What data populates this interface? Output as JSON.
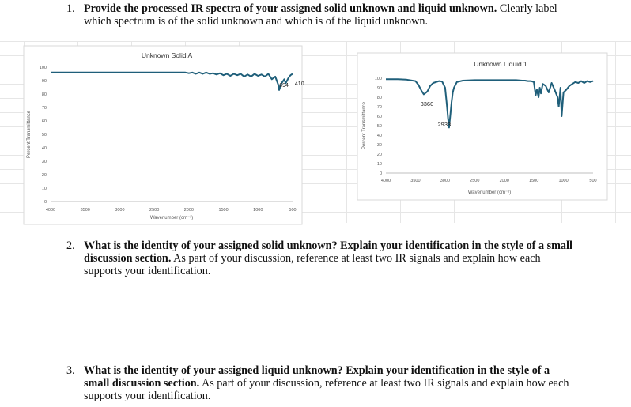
{
  "questions": [
    {
      "number": "1.",
      "bold": "Provide the processed IR spectra of your assigned solid unknown and liquid unknown.",
      "rest": " Clearly label which spectrum is of the solid unknown and which is of the liquid unknown."
    },
    {
      "number": "2.",
      "bold": "What is the identity of your assigned solid unknown? Explain your identification in the style of a small discussion section.",
      "rest": " As part of your discussion, reference at least two IR signals and explain how each supports your identification."
    },
    {
      "number": "3.",
      "bold": "What is the identity of your assigned liquid unknown? Explain your identification in the style of a small discussion section.",
      "rest": " As part of your discussion, reference at least two IR signals and explain how each supports your identification."
    }
  ],
  "chart_data": [
    {
      "type": "line",
      "title": "Unknown Solid A",
      "xlabel": "Wavenumber (cm⁻¹)",
      "ylabel": "Percent Transmittance",
      "xlim": [
        4000,
        500
      ],
      "ylim": [
        0,
        100
      ],
      "xticks": [
        "4000",
        "3500",
        "3000",
        "2500",
        "2000",
        "1500",
        "1000",
        "500"
      ],
      "yticks": [
        "0",
        "10",
        "20",
        "30",
        "40",
        "50",
        "60",
        "70",
        "80",
        "90",
        "100"
      ],
      "grid": false,
      "color": "#1f5f7a",
      "series": [
        {
          "x": [
            4000,
            3500,
            3000,
            2500,
            2150,
            2050,
            2000,
            1950,
            1900,
            1850,
            1800,
            1750,
            1700,
            1650,
            1600,
            1550,
            1500,
            1450,
            1400,
            1350,
            1300,
            1250,
            1200,
            1150,
            1100,
            1050,
            1000,
            950,
            900,
            850,
            800,
            750,
            700,
            694,
            660,
            620,
            600,
            560,
            530,
            500
          ],
          "y": [
            96,
            96,
            96,
            96,
            96,
            96,
            95.5,
            96,
            95,
            96,
            95,
            96,
            95,
            95.5,
            94.5,
            95.5,
            94,
            95,
            93.5,
            95,
            94,
            95,
            93,
            94.5,
            93,
            95,
            93.5,
            94.5,
            93,
            95,
            91,
            93,
            86,
            83,
            88,
            91,
            88,
            92,
            94,
            95
          ]
        }
      ],
      "annotations": [
        {
          "text": "694",
          "x": 694
        },
        {
          "text": "410",
          "x": 560
        }
      ]
    },
    {
      "type": "line",
      "title": "Unknown Liquid 1",
      "xlabel": "Wavenumber (cm⁻¹)",
      "ylabel": "Percent Transmittance",
      "xlim": [
        4000,
        500
      ],
      "ylim": [
        0,
        100
      ],
      "xticks": [
        "4000",
        "3500",
        "3000",
        "2500",
        "2000",
        "1500",
        "1000",
        "500"
      ],
      "yticks": [
        "0",
        "10",
        "20",
        "30",
        "40",
        "50",
        "60",
        "70",
        "80",
        "90",
        "100"
      ],
      "grid": false,
      "color": "#1f5f7a",
      "series": [
        {
          "x": [
            4000,
            3800,
            3650,
            3500,
            3450,
            3400,
            3360,
            3300,
            3250,
            3200,
            3100,
            3050,
            3000,
            2970,
            2950,
            2933,
            2910,
            2890,
            2870,
            2850,
            2800,
            2700,
            2500,
            2200,
            2000,
            1800,
            1700,
            1650,
            1600,
            1550,
            1500,
            1470,
            1450,
            1420,
            1400,
            1380,
            1350,
            1300,
            1250,
            1200,
            1150,
            1100,
            1080,
            1050,
            1030,
            1000,
            950,
            900,
            850,
            800,
            750,
            700,
            650,
            600,
            550,
            500
          ],
          "y": [
            99,
            99,
            98.5,
            97,
            93,
            87,
            83,
            86,
            92,
            95,
            97,
            96.5,
            90,
            72,
            58,
            48,
            62,
            75,
            85,
            90,
            96,
            97.5,
            98,
            98,
            98,
            98,
            97.5,
            97.5,
            97,
            97,
            96,
            82,
            88,
            80,
            90,
            84,
            94,
            92,
            85,
            95,
            88,
            80,
            70,
            90,
            60,
            85,
            88,
            92,
            94,
            96,
            95,
            97,
            95,
            97,
            96,
            97
          ]
        }
      ],
      "annotations": [
        {
          "text": "3360",
          "x": 3360
        },
        {
          "text": "2933",
          "x": 2933
        }
      ]
    }
  ]
}
